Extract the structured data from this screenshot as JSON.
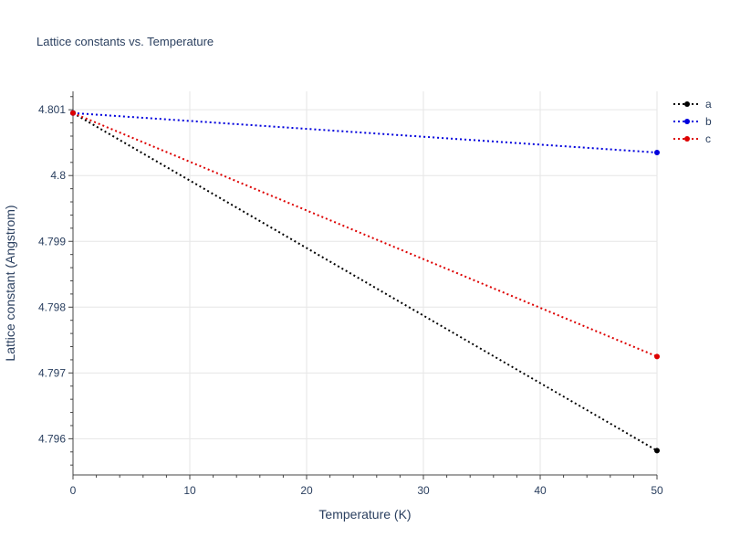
{
  "chart_data": {
    "type": "line",
    "title": "Lattice constants vs. Temperature",
    "xlabel": "Temperature (K)",
    "ylabel": "Lattice constant (Angstrom)",
    "xlim": [
      0,
      50
    ],
    "ylim": [
      4.79545,
      4.80128
    ],
    "x_ticks": [
      0,
      10,
      20,
      30,
      40,
      50
    ],
    "x_tick_labels": [
      "0",
      "10",
      "20",
      "30",
      "40",
      "50"
    ],
    "y_ticks": [
      4.796,
      4.797,
      4.798,
      4.799,
      4.8,
      4.801
    ],
    "y_tick_labels": [
      "4.796",
      "4.797",
      "4.798",
      "4.799",
      "4.8",
      "4.801"
    ],
    "grid": true,
    "legend_position": "top-right",
    "x": [
      0,
      50
    ],
    "series": [
      {
        "name": "a",
        "color": "#000000",
        "line_style": "dotted",
        "values": [
          4.80095,
          4.79582
        ]
      },
      {
        "name": "b",
        "color": "#0000dd",
        "line_style": "dotted",
        "values": [
          4.80095,
          4.80035
        ]
      },
      {
        "name": "c",
        "color": "#dd0000",
        "line_style": "dotted",
        "values": [
          4.80095,
          4.79725
        ]
      }
    ]
  }
}
